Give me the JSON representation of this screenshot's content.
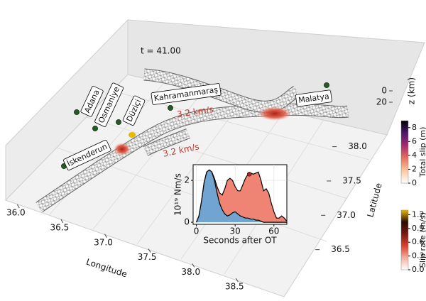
{
  "map": {
    "time_label": "t = 41.00",
    "xlabel": "Longitude",
    "ylabel": "Latitude",
    "zlabel": "z (km)",
    "xlim": [
      35.9,
      38.8
    ],
    "xticks": [
      {
        "value": 36.0,
        "label": "36.0"
      },
      {
        "value": 36.5,
        "label": "36.5"
      },
      {
        "value": 37.0,
        "label": "37.0"
      },
      {
        "value": 37.5,
        "label": "37.5"
      },
      {
        "value": 38.0,
        "label": "38.0"
      },
      {
        "value": 38.5,
        "label": "38.5"
      }
    ],
    "ylim": [
      36.3,
      38.3
    ],
    "yticks": [
      {
        "value": 36.5,
        "label": "36.5"
      },
      {
        "value": 37.0,
        "label": "37.0"
      },
      {
        "value": 37.5,
        "label": "37.5"
      },
      {
        "value": 38.0,
        "label": "38.0"
      }
    ],
    "zlim": [
      0,
      20
    ],
    "zticks": [
      0,
      20
    ],
    "cities": [
      "Adana",
      "Osmaniye",
      "Düziçi",
      "Kahramanmaraş",
      "İskenderun",
      "Malatya"
    ],
    "annotations": [
      "3.2 km/s",
      "3.2 km/s"
    ]
  },
  "chart_data": {
    "type": "area",
    "xlabel": "Seconds after OT",
    "ylabel": "10¹⁹ Nm/s",
    "x": [
      0,
      2,
      4,
      6,
      8,
      10,
      12,
      14,
      16,
      18,
      20,
      22,
      24,
      26,
      28,
      30,
      32,
      34,
      36,
      38,
      40,
      42,
      44,
      46,
      48,
      50,
      52,
      54,
      56,
      58,
      60,
      62,
      64,
      66,
      68,
      70
    ],
    "series": [
      {
        "color": "#f08474",
        "values": [
          0,
          0.3,
          1.0,
          1.9,
          2.4,
          2.5,
          2.4,
          2.1,
          1.7,
          1.4,
          1.3,
          1.6,
          2.0,
          2.1,
          2.0,
          1.7,
          1.5,
          1.5,
          1.8,
          2.1,
          2.3,
          2.35,
          2.3,
          2.35,
          2.4,
          2.0,
          1.5,
          1.6,
          1.4,
          0.9,
          0.5,
          0.2,
          0.2,
          0.3,
          0.2,
          0.05
        ]
      },
      {
        "color": "#5aa9e0",
        "values": [
          0,
          0.3,
          1.0,
          1.9,
          2.4,
          2.5,
          2.4,
          2.0,
          1.4,
          0.9,
          0.6,
          0.4,
          0.3,
          0.35,
          0.45,
          0.5,
          0.4,
          0.3,
          0.25,
          0.2,
          0.2,
          0.15,
          0.15,
          0.1,
          0.1,
          0.05,
          0,
          0,
          0,
          0,
          0,
          0,
          0,
          0,
          0,
          0
        ]
      }
    ],
    "marker": {
      "x": 41,
      "y": 2.3,
      "color": "#a0281c"
    },
    "xlim": [
      -2.5,
      70
    ],
    "ylim": [
      -0.1,
      2.75
    ],
    "xticks": [
      0,
      30,
      60
    ],
    "yticks": [
      0,
      2
    ],
    "grid": true
  },
  "colorbars": [
    {
      "label": "Total slip (m)",
      "lim": [
        0,
        9
      ],
      "ticks": [
        0,
        2,
        4,
        6,
        8
      ],
      "colors": [
        "#ffffff",
        "#f9c9a3",
        "#e8705e",
        "#a62c6e",
        "#4b1a6b",
        "#000000"
      ]
    },
    {
      "label": "Slip rate (m/s)",
      "lim": [
        0,
        1.3
      ],
      "ticks": [
        {
          "value": 0,
          "label": "0.0"
        },
        {
          "value": 0.3,
          "label": "0.3"
        },
        {
          "value": 0.6,
          "label": "0.6"
        },
        {
          "value": 0.9,
          "label": "0.9"
        },
        {
          "value": 1.2,
          "label": "1.2"
        }
      ],
      "colors": [
        "#ffffff",
        "#f4b0a0",
        "#d9432f",
        "#7a1a10",
        "#2a0a05",
        "#e8b800"
      ]
    }
  ]
}
